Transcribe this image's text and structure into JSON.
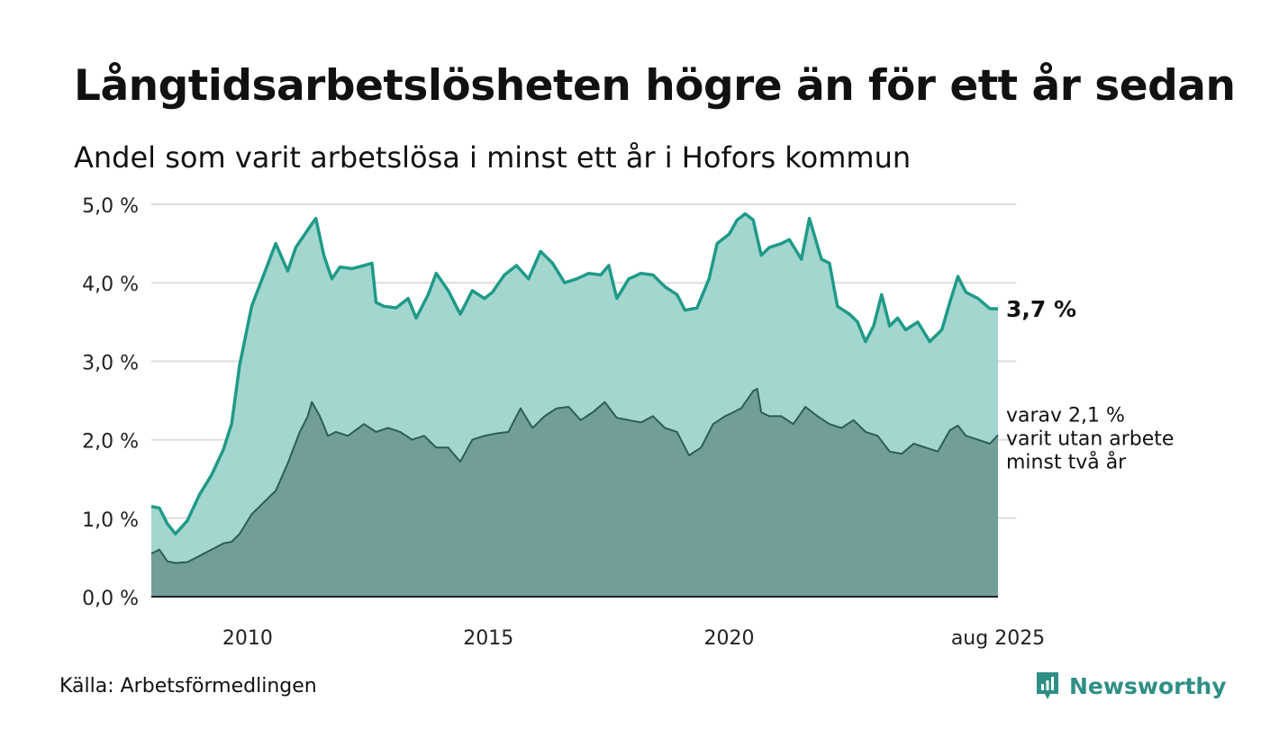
{
  "title": "Långtidsarbetslösheten högre än för ett år sedan",
  "subtitle": "Andel som varit arbetslösa i minst ett år i Hofors kommun",
  "source": "Källa: Arbetsförmedlingen",
  "brand": {
    "name": "Newsworthy",
    "icon": "newsworthy-logo-icon"
  },
  "colors": {
    "series_1_line": "#1f9a88",
    "series_1_fill": "#a3d6cf",
    "series_2_line": "#2b5e57",
    "series_2_fill": "#719f97",
    "grid": "#dddddd",
    "brand": "#2f8f85"
  },
  "chart_data": {
    "type": "area",
    "title": "Långtidsarbetslösheten högre än för ett år sedan",
    "subtitle": "Andel som varit arbetslösa i minst ett år i Hofors kommun",
    "xlabel": "",
    "ylabel": "",
    "x_start": "2008-01",
    "x_end": "2025-08",
    "x_frequency": "monthly",
    "ylim": [
      0,
      5
    ],
    "yticks": [
      0,
      1,
      2,
      3,
      4,
      5
    ],
    "ytick_labels": [
      "0,0 %",
      "1,0 %",
      "2,0 %",
      "3,0 %",
      "4,0 %",
      "5,0 %"
    ],
    "xticks": [
      "2010-01",
      "2015-01",
      "2020-01",
      "2025-08"
    ],
    "xtick_labels": [
      "2010",
      "2015",
      "2020",
      "aug 2025"
    ],
    "grid": true,
    "end_labels": {
      "series_1": "3,7 %",
      "series_2": [
        "varav 2,1 %",
        "varit utan arbete",
        "minst två år"
      ]
    },
    "series": [
      {
        "key": "series_1",
        "anchors": [
          [
            "2008-01",
            1.15
          ],
          [
            "2008-03",
            1.13
          ],
          [
            "2008-05",
            0.93
          ],
          [
            "2008-07",
            0.8
          ],
          [
            "2008-10",
            0.97
          ],
          [
            "2009-01",
            1.3
          ],
          [
            "2009-04",
            1.55
          ],
          [
            "2009-07",
            1.88
          ],
          [
            "2009-09",
            2.2
          ],
          [
            "2009-11",
            2.95
          ],
          [
            "2010-02",
            3.7
          ],
          [
            "2010-05",
            4.1
          ],
          [
            "2010-08",
            4.5
          ],
          [
            "2010-11",
            4.15
          ],
          [
            "2011-01",
            4.45
          ],
          [
            "2011-03",
            4.6
          ],
          [
            "2011-05",
            4.75
          ],
          [
            "2011-06",
            4.82
          ],
          [
            "2011-08",
            4.35
          ],
          [
            "2011-10",
            4.05
          ],
          [
            "2011-12",
            4.2
          ],
          [
            "2012-03",
            4.18
          ],
          [
            "2012-06",
            4.22
          ],
          [
            "2012-08",
            4.25
          ],
          [
            "2012-09",
            3.75
          ],
          [
            "2012-11",
            3.7
          ],
          [
            "2013-02",
            3.68
          ],
          [
            "2013-05",
            3.8
          ],
          [
            "2013-07",
            3.55
          ],
          [
            "2013-10",
            3.85
          ],
          [
            "2013-12",
            4.12
          ],
          [
            "2014-03",
            3.9
          ],
          [
            "2014-06",
            3.6
          ],
          [
            "2014-09",
            3.9
          ],
          [
            "2014-12",
            3.8
          ],
          [
            "2015-02",
            3.88
          ],
          [
            "2015-05",
            4.1
          ],
          [
            "2015-08",
            4.22
          ],
          [
            "2015-11",
            4.05
          ],
          [
            "2016-02",
            4.4
          ],
          [
            "2016-05",
            4.25
          ],
          [
            "2016-08",
            4.0
          ],
          [
            "2016-11",
            4.05
          ],
          [
            "2017-02",
            4.12
          ],
          [
            "2017-05",
            4.1
          ],
          [
            "2017-07",
            4.22
          ],
          [
            "2017-09",
            3.8
          ],
          [
            "2017-12",
            4.05
          ],
          [
            "2018-03",
            4.12
          ],
          [
            "2018-06",
            4.1
          ],
          [
            "2018-09",
            3.95
          ],
          [
            "2018-12",
            3.85
          ],
          [
            "2019-02",
            3.65
          ],
          [
            "2019-05",
            3.68
          ],
          [
            "2019-08",
            4.05
          ],
          [
            "2019-10",
            4.5
          ],
          [
            "2020-01",
            4.62
          ],
          [
            "2020-03",
            4.8
          ],
          [
            "2020-05",
            4.88
          ],
          [
            "2020-07",
            4.8
          ],
          [
            "2020-09",
            4.35
          ],
          [
            "2020-11",
            4.45
          ],
          [
            "2021-02",
            4.5
          ],
          [
            "2021-04",
            4.55
          ],
          [
            "2021-07",
            4.3
          ],
          [
            "2021-09",
            4.82
          ],
          [
            "2021-12",
            4.3
          ],
          [
            "2022-02",
            4.25
          ],
          [
            "2022-04",
            3.7
          ],
          [
            "2022-07",
            3.6
          ],
          [
            "2022-09",
            3.5
          ],
          [
            "2022-11",
            3.25
          ],
          [
            "2023-01",
            3.45
          ],
          [
            "2023-03",
            3.85
          ],
          [
            "2023-05",
            3.45
          ],
          [
            "2023-07",
            3.55
          ],
          [
            "2023-09",
            3.4
          ],
          [
            "2023-12",
            3.5
          ],
          [
            "2024-03",
            3.25
          ],
          [
            "2024-06",
            3.4
          ],
          [
            "2024-08",
            3.75
          ],
          [
            "2024-10",
            4.08
          ],
          [
            "2024-12",
            3.88
          ],
          [
            "2025-03",
            3.8
          ],
          [
            "2025-06",
            3.67
          ],
          [
            "2025-08",
            3.67
          ]
        ]
      },
      {
        "key": "series_2",
        "anchors": [
          [
            "2008-01",
            0.55
          ],
          [
            "2008-03",
            0.6
          ],
          [
            "2008-05",
            0.45
          ],
          [
            "2008-07",
            0.43
          ],
          [
            "2008-10",
            0.44
          ],
          [
            "2009-01",
            0.52
          ],
          [
            "2009-04",
            0.6
          ],
          [
            "2009-07",
            0.68
          ],
          [
            "2009-09",
            0.7
          ],
          [
            "2009-11",
            0.8
          ],
          [
            "2010-02",
            1.05
          ],
          [
            "2010-05",
            1.2
          ],
          [
            "2010-08",
            1.35
          ],
          [
            "2010-11",
            1.7
          ],
          [
            "2011-02",
            2.1
          ],
          [
            "2011-04",
            2.3
          ],
          [
            "2011-05",
            2.48
          ],
          [
            "2011-07",
            2.3
          ],
          [
            "2011-09",
            2.05
          ],
          [
            "2011-11",
            2.1
          ],
          [
            "2012-02",
            2.05
          ],
          [
            "2012-06",
            2.2
          ],
          [
            "2012-09",
            2.1
          ],
          [
            "2012-12",
            2.15
          ],
          [
            "2013-03",
            2.1
          ],
          [
            "2013-06",
            2.0
          ],
          [
            "2013-09",
            2.05
          ],
          [
            "2013-12",
            1.9
          ],
          [
            "2014-03",
            1.9
          ],
          [
            "2014-06",
            1.72
          ],
          [
            "2014-09",
            2.0
          ],
          [
            "2014-12",
            2.05
          ],
          [
            "2015-03",
            2.08
          ],
          [
            "2015-06",
            2.1
          ],
          [
            "2015-09",
            2.4
          ],
          [
            "2015-12",
            2.15
          ],
          [
            "2016-03",
            2.3
          ],
          [
            "2016-06",
            2.4
          ],
          [
            "2016-09",
            2.42
          ],
          [
            "2016-12",
            2.25
          ],
          [
            "2017-03",
            2.35
          ],
          [
            "2017-06",
            2.48
          ],
          [
            "2017-09",
            2.28
          ],
          [
            "2017-12",
            2.25
          ],
          [
            "2018-03",
            2.22
          ],
          [
            "2018-06",
            2.3
          ],
          [
            "2018-09",
            2.15
          ],
          [
            "2018-12",
            2.1
          ],
          [
            "2019-03",
            1.8
          ],
          [
            "2019-06",
            1.9
          ],
          [
            "2019-09",
            2.2
          ],
          [
            "2019-12",
            2.3
          ],
          [
            "2020-02",
            2.35
          ],
          [
            "2020-04",
            2.4
          ],
          [
            "2020-07",
            2.62
          ],
          [
            "2020-08",
            2.65
          ],
          [
            "2020-09",
            2.35
          ],
          [
            "2020-11",
            2.3
          ],
          [
            "2021-02",
            2.3
          ],
          [
            "2021-05",
            2.2
          ],
          [
            "2021-08",
            2.42
          ],
          [
            "2021-11",
            2.3
          ],
          [
            "2022-02",
            2.2
          ],
          [
            "2022-05",
            2.15
          ],
          [
            "2022-08",
            2.25
          ],
          [
            "2022-11",
            2.1
          ],
          [
            "2023-02",
            2.05
          ],
          [
            "2023-05",
            1.85
          ],
          [
            "2023-08",
            1.82
          ],
          [
            "2023-11",
            1.95
          ],
          [
            "2024-02",
            1.9
          ],
          [
            "2024-05",
            1.85
          ],
          [
            "2024-08",
            2.12
          ],
          [
            "2024-10",
            2.18
          ],
          [
            "2024-12",
            2.05
          ],
          [
            "2025-03",
            2.0
          ],
          [
            "2025-06",
            1.95
          ],
          [
            "2025-08",
            2.06
          ]
        ]
      }
    ]
  }
}
